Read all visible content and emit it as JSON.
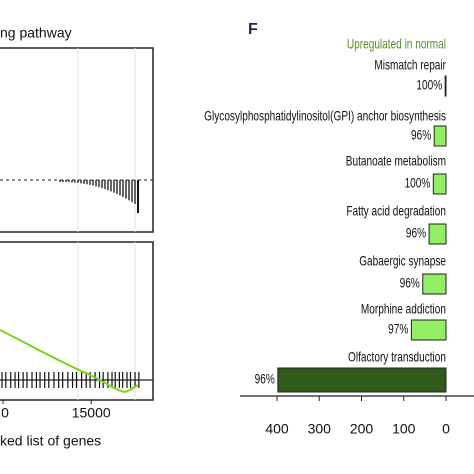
{
  "chart_data": [
    {
      "type": "line",
      "title": "ng pathway",
      "x_label": "ked list of genes",
      "xlim": [
        9713,
        18506
      ],
      "xticks": [
        {
          "value": 10000,
          "label": "0"
        },
        15000
      ]
    },
    {
      "type": "hbar",
      "panel_label": "F",
      "subtitle": "Upregulated in normal",
      "subtitle_color": "#5a8f2a",
      "categories": [
        "Mismatch repair",
        "Glycosylphosphatidylinositol(GPI) anchor biosynthesis",
        "Butanoate metabolism",
        "Fatty acid degradation",
        "Gabaergic synapse",
        "Morphine addiction",
        "Olfactory transduction"
      ],
      "values": [
        2,
        28,
        30,
        40,
        55,
        82,
        398
      ],
      "percent_labels": [
        "100%",
        "96%",
        "100%",
        "96%",
        "96%",
        "97%",
        "96%"
      ],
      "colors": [
        "#92ee62",
        "#92ee62",
        "#92ee62",
        "#92ee62",
        "#92ee62",
        "#92ee62",
        "#2f5a1c"
      ],
      "xlim": [
        0,
        400
      ],
      "xticks": [
        400,
        300,
        200,
        100,
        0
      ],
      "reversed": true
    }
  ]
}
